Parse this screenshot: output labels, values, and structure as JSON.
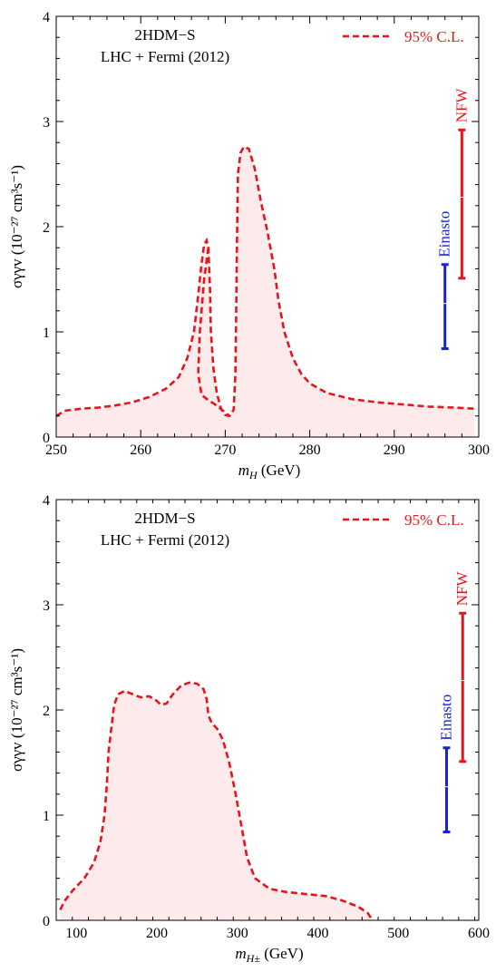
{
  "colors": {
    "contour": "#e8141c",
    "fill": "#fdeaea",
    "einasto": "#1522d6",
    "nfw": "#e8141c",
    "frame": "#000000"
  },
  "chart_data": [
    {
      "type": "area",
      "panel_title": "2HDM−S",
      "panel_subtitle": "LHC + Fermi (2012)",
      "legend_label": "95% C.L.",
      "xlabel_main": "m",
      "xlabel_sub": "H",
      "xlabel_tail": " (GeV)",
      "ylabel_text": "σγγv (10⁻²⁷ cm³s⁻¹)",
      "xlim": [
        250,
        300
      ],
      "ylim": [
        0,
        4
      ],
      "xticks": [
        250,
        260,
        270,
        280,
        290,
        300
      ],
      "yticks": [
        0,
        1,
        2,
        3,
        4
      ],
      "contour": [
        [
          250,
          0.2
        ],
        [
          251,
          0.25
        ],
        [
          253,
          0.27
        ],
        [
          255,
          0.28
        ],
        [
          257,
          0.3
        ],
        [
          259,
          0.33
        ],
        [
          261,
          0.38
        ],
        [
          263,
          0.46
        ],
        [
          264.5,
          0.57
        ],
        [
          265.5,
          0.75
        ],
        [
          266.3,
          1.0
        ],
        [
          266.8,
          1.35
        ],
        [
          267.2,
          1.65
        ],
        [
          267.5,
          1.83
        ],
        [
          267.8,
          1.87
        ],
        [
          268.0,
          1.8
        ],
        [
          268.2,
          1.4
        ],
        [
          268.3,
          1.0
        ],
        [
          268.6,
          0.65
        ],
        [
          269.0,
          0.42
        ],
        [
          269.5,
          0.27
        ],
        [
          270.0,
          0.21
        ],
        [
          270.5,
          0.2
        ],
        [
          271.0,
          0.26
        ],
        [
          271.2,
          0.6
        ],
        [
          271.3,
          1.2
        ],
        [
          271.4,
          1.9
        ],
        [
          271.5,
          2.5
        ],
        [
          271.8,
          2.7
        ],
        [
          272.2,
          2.76
        ],
        [
          272.8,
          2.74
        ],
        [
          273.5,
          2.55
        ],
        [
          274.2,
          2.25
        ],
        [
          275.0,
          1.95
        ],
        [
          275.8,
          1.6
        ],
        [
          276.3,
          1.3
        ],
        [
          277.0,
          1.0
        ],
        [
          278.0,
          0.75
        ],
        [
          279.0,
          0.6
        ],
        [
          280.0,
          0.51
        ],
        [
          282.0,
          0.42
        ],
        [
          285.0,
          0.36
        ],
        [
          288.0,
          0.33
        ],
        [
          291.0,
          0.31
        ],
        [
          294.0,
          0.29
        ],
        [
          297.0,
          0.28
        ],
        [
          299.5,
          0.27
        ],
        [
          299.5,
          0.0
        ],
        [
          250,
          0.0
        ]
      ],
      "dashed_path_length": 45,
      "dashed_inner": [
        [
          268.0,
          1.8
        ],
        [
          267.5,
          1.5
        ],
        [
          267.0,
          1.0
        ],
        [
          266.8,
          0.6
        ],
        [
          267.2,
          0.4
        ],
        [
          268.0,
          0.35
        ],
        [
          269.0,
          0.3
        ],
        [
          270.5,
          0.2
        ]
      ],
      "einasto": {
        "label": "Einasto",
        "x": 296,
        "low": 0.84,
        "mid": 1.27,
        "high": 1.64
      },
      "nfw": {
        "label": "NFW",
        "x": 298,
        "low": 1.51,
        "mid": 2.28,
        "high": 2.92
      }
    },
    {
      "type": "area",
      "panel_title": "2HDM−S",
      "panel_subtitle": "LHC + Fermi (2012)",
      "legend_label": "95% C.L.",
      "xlabel_main": "m",
      "xlabel_sub": "H±",
      "xlabel_tail": " (GeV)",
      "ylabel_text": "σγγv (10⁻²⁷ cm³s⁻¹)",
      "xlim": [
        75,
        600
      ],
      "ylim": [
        0,
        4
      ],
      "xticks": [
        100,
        200,
        300,
        400,
        500,
        600
      ],
      "yticks": [
        0,
        1,
        2,
        3,
        4
      ],
      "contour": [
        [
          80,
          0.1
        ],
        [
          85,
          0.18
        ],
        [
          95,
          0.28
        ],
        [
          110,
          0.4
        ],
        [
          122,
          0.55
        ],
        [
          130,
          0.75
        ],
        [
          135,
          1.0
        ],
        [
          138,
          1.3
        ],
        [
          140,
          1.6
        ],
        [
          143,
          1.8
        ],
        [
          147,
          2.05
        ],
        [
          152,
          2.15
        ],
        [
          160,
          2.18
        ],
        [
          170,
          2.15
        ],
        [
          180,
          2.12
        ],
        [
          190,
          2.13
        ],
        [
          198,
          2.1
        ],
        [
          205,
          2.05
        ],
        [
          212,
          2.06
        ],
        [
          220,
          2.15
        ],
        [
          230,
          2.23
        ],
        [
          240,
          2.26
        ],
        [
          250,
          2.25
        ],
        [
          258,
          2.2
        ],
        [
          262,
          2.1
        ],
        [
          264,
          1.95
        ],
        [
          268,
          1.88
        ],
        [
          275,
          1.82
        ],
        [
          282,
          1.72
        ],
        [
          290,
          1.5
        ],
        [
          298,
          1.2
        ],
        [
          305,
          0.9
        ],
        [
          312,
          0.6
        ],
        [
          322,
          0.4
        ],
        [
          340,
          0.3
        ],
        [
          360,
          0.27
        ],
        [
          385,
          0.25
        ],
        [
          410,
          0.23
        ],
        [
          430,
          0.19
        ],
        [
          450,
          0.13
        ],
        [
          462,
          0.07
        ],
        [
          468,
          0.0
        ],
        [
          80,
          0.0
        ]
      ],
      "einasto": {
        "label": "Einasto",
        "x": 560,
        "low": 0.84,
        "mid": 1.27,
        "high": 1.64
      },
      "nfw": {
        "label": "NFW",
        "x": 580,
        "low": 1.51,
        "mid": 2.28,
        "high": 2.92
      }
    }
  ]
}
